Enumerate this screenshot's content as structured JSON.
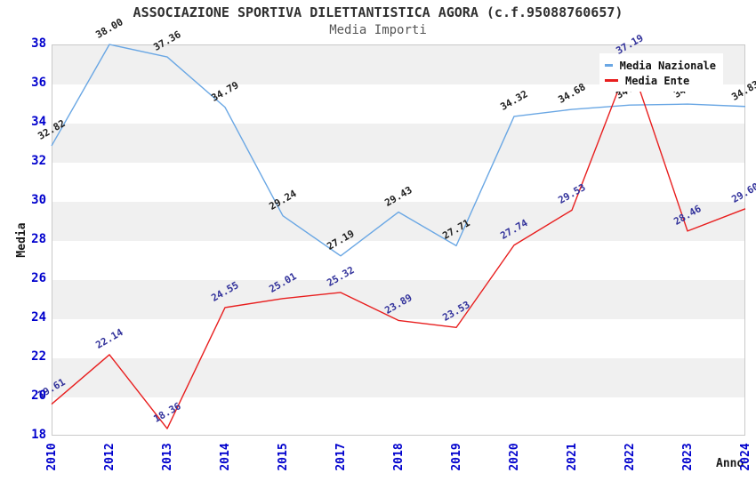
{
  "header": {
    "title": "ASSOCIAZIONE SPORTIVA DILETTANTISTICA AGORA (c.f.95088760657)",
    "subtitle": "Media Importi"
  },
  "chart_data": {
    "type": "line",
    "title": "ASSOCIAZIONE SPORTIVA DILETTANTISTICA AGORA (c.f.95088760657)",
    "subtitle": "Media Importi",
    "x": [
      "2010",
      "2012",
      "2013",
      "2014",
      "2015",
      "2017",
      "2018",
      "2019",
      "2020",
      "2021",
      "2022",
      "2023",
      "2024"
    ],
    "series": [
      {
        "name": "Media Nazionale",
        "color": "#6aa7e4",
        "label_color": "#202020",
        "values": [
          32.82,
          38.0,
          37.36,
          34.79,
          29.24,
          27.19,
          29.43,
          27.71,
          34.32,
          34.68,
          34.9,
          34.95,
          34.83
        ]
      },
      {
        "name": "Media Ente",
        "color": "#e81e1e",
        "label_color": "#32329b",
        "values": [
          19.61,
          22.14,
          18.36,
          24.55,
          25.01,
          25.32,
          23.89,
          23.53,
          27.74,
          29.53,
          37.19,
          28.46,
          29.6
        ]
      }
    ],
    "xlabel": "Anno",
    "ylabel": "Media",
    "ylim": [
      18,
      38
    ],
    "ytick_step": 2,
    "grid": "alternating-horizontal-bands",
    "band_colors": [
      "#f0f0f0",
      "#ffffff"
    ],
    "tick_label_color": "#0000cd",
    "legend_position": "top-right",
    "label_decimals": 2
  }
}
